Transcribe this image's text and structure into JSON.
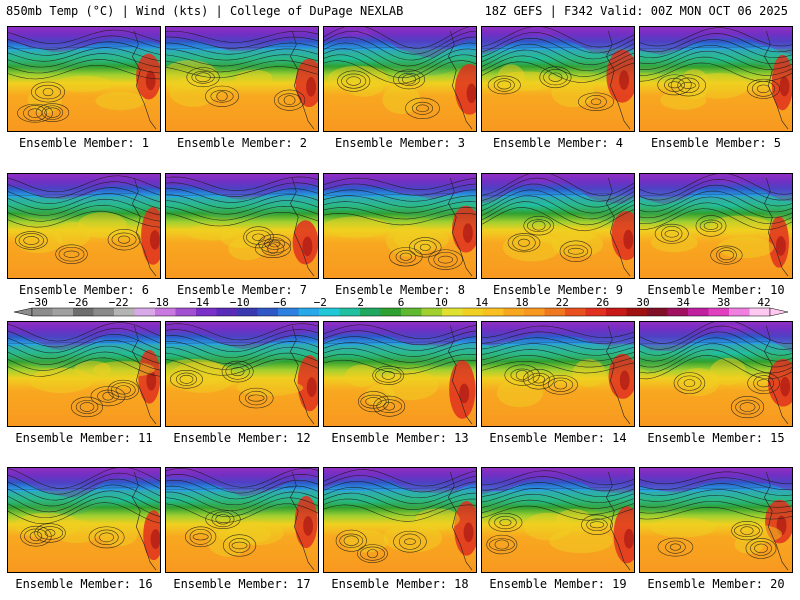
{
  "header": {
    "left_title": "850mb Temp (°C) | Wind (kts) | College of DuPage NEXLAB",
    "right_title": "18Z GEFS | F342 Valid: 00Z MON OCT 06 2025"
  },
  "colorbar": {
    "labels": [
      "-30",
      "-26",
      "-22",
      "-18",
      "-14",
      "-10",
      "-6",
      "-2",
      "2",
      "6",
      "10",
      "14",
      "18",
      "22",
      "26",
      "30",
      "34",
      "38",
      "42"
    ],
    "colors": [
      "#8c8c8c",
      "#a0a0a0",
      "#6e6e6e",
      "#8a8a8a",
      "#b4b4b4",
      "#d8a8e8",
      "#c878e0",
      "#a050d0",
      "#7a30c8",
      "#5a2ab8",
      "#3a3ab0",
      "#2e58c8",
      "#2e80e0",
      "#28a8e8",
      "#20c8d8",
      "#20c0a0",
      "#20a860",
      "#30a030",
      "#60b830",
      "#a0d030",
      "#e0e030",
      "#f0d020",
      "#f8c020",
      "#f8a820",
      "#f89820",
      "#f07820",
      "#e85020",
      "#e03020",
      "#c81818",
      "#a01010",
      "#801028",
      "#a01060",
      "#c020a0",
      "#e040c0",
      "#f080e0",
      "#ffc8f0"
    ]
  },
  "members": [
    {
      "label": "Ensemble Member: 1"
    },
    {
      "label": "Ensemble Member: 2"
    },
    {
      "label": "Ensemble Member: 3"
    },
    {
      "label": "Ensemble Member: 4"
    },
    {
      "label": "Ensemble Member: 5"
    },
    {
      "label": "Ensemble Member: 6"
    },
    {
      "label": "Ensemble Member: 7"
    },
    {
      "label": "Ensemble Member: 8"
    },
    {
      "label": "Ensemble Member: 9"
    },
    {
      "label": "Ensemble Member: 10"
    },
    {
      "label": "Ensemble Member: 11"
    },
    {
      "label": "Ensemble Member: 12"
    },
    {
      "label": "Ensemble Member: 13"
    },
    {
      "label": "Ensemble Member: 14"
    },
    {
      "label": "Ensemble Member: 15"
    },
    {
      "label": "Ensemble Member: 16"
    },
    {
      "label": "Ensemble Member: 17"
    },
    {
      "label": "Ensemble Member: 18"
    },
    {
      "label": "Ensemble Member: 19"
    },
    {
      "label": "Ensemble Member: 20"
    }
  ]
}
